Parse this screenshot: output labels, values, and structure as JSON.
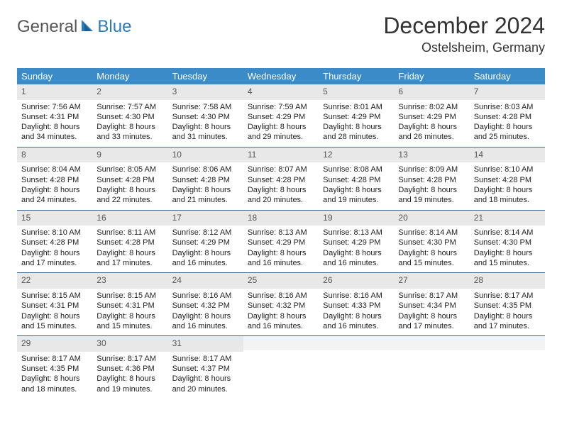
{
  "logo": {
    "word1": "General",
    "word2": "Blue"
  },
  "title": "December 2024",
  "location": "Ostelsheim, Germany",
  "colors": {
    "header_bg": "#3b8bc9",
    "header_text": "#ffffff",
    "daynum_bg": "#e8e8e8",
    "daynum_text": "#555555",
    "cell_text": "#222222",
    "week_border": "#3b6f9a",
    "logo_gray": "#575757",
    "logo_blue": "#2b7bbf"
  },
  "typography": {
    "title_fontsize": 32,
    "location_fontsize": 18,
    "dayheader_fontsize": 13,
    "daynum_fontsize": 12,
    "body_fontsize": 11
  },
  "dayNames": [
    "Sunday",
    "Monday",
    "Tuesday",
    "Wednesday",
    "Thursday",
    "Friday",
    "Saturday"
  ],
  "weeks": [
    [
      {
        "num": "1",
        "sunrise": "Sunrise: 7:56 AM",
        "sunset": "Sunset: 4:31 PM",
        "dl1": "Daylight: 8 hours",
        "dl2": "and 34 minutes."
      },
      {
        "num": "2",
        "sunrise": "Sunrise: 7:57 AM",
        "sunset": "Sunset: 4:30 PM",
        "dl1": "Daylight: 8 hours",
        "dl2": "and 33 minutes."
      },
      {
        "num": "3",
        "sunrise": "Sunrise: 7:58 AM",
        "sunset": "Sunset: 4:30 PM",
        "dl1": "Daylight: 8 hours",
        "dl2": "and 31 minutes."
      },
      {
        "num": "4",
        "sunrise": "Sunrise: 7:59 AM",
        "sunset": "Sunset: 4:29 PM",
        "dl1": "Daylight: 8 hours",
        "dl2": "and 29 minutes."
      },
      {
        "num": "5",
        "sunrise": "Sunrise: 8:01 AM",
        "sunset": "Sunset: 4:29 PM",
        "dl1": "Daylight: 8 hours",
        "dl2": "and 28 minutes."
      },
      {
        "num": "6",
        "sunrise": "Sunrise: 8:02 AM",
        "sunset": "Sunset: 4:29 PM",
        "dl1": "Daylight: 8 hours",
        "dl2": "and 26 minutes."
      },
      {
        "num": "7",
        "sunrise": "Sunrise: 8:03 AM",
        "sunset": "Sunset: 4:28 PM",
        "dl1": "Daylight: 8 hours",
        "dl2": "and 25 minutes."
      }
    ],
    [
      {
        "num": "8",
        "sunrise": "Sunrise: 8:04 AM",
        "sunset": "Sunset: 4:28 PM",
        "dl1": "Daylight: 8 hours",
        "dl2": "and 24 minutes."
      },
      {
        "num": "9",
        "sunrise": "Sunrise: 8:05 AM",
        "sunset": "Sunset: 4:28 PM",
        "dl1": "Daylight: 8 hours",
        "dl2": "and 22 minutes."
      },
      {
        "num": "10",
        "sunrise": "Sunrise: 8:06 AM",
        "sunset": "Sunset: 4:28 PM",
        "dl1": "Daylight: 8 hours",
        "dl2": "and 21 minutes."
      },
      {
        "num": "11",
        "sunrise": "Sunrise: 8:07 AM",
        "sunset": "Sunset: 4:28 PM",
        "dl1": "Daylight: 8 hours",
        "dl2": "and 20 minutes."
      },
      {
        "num": "12",
        "sunrise": "Sunrise: 8:08 AM",
        "sunset": "Sunset: 4:28 PM",
        "dl1": "Daylight: 8 hours",
        "dl2": "and 19 minutes."
      },
      {
        "num": "13",
        "sunrise": "Sunrise: 8:09 AM",
        "sunset": "Sunset: 4:28 PM",
        "dl1": "Daylight: 8 hours",
        "dl2": "and 19 minutes."
      },
      {
        "num": "14",
        "sunrise": "Sunrise: 8:10 AM",
        "sunset": "Sunset: 4:28 PM",
        "dl1": "Daylight: 8 hours",
        "dl2": "and 18 minutes."
      }
    ],
    [
      {
        "num": "15",
        "sunrise": "Sunrise: 8:10 AM",
        "sunset": "Sunset: 4:28 PM",
        "dl1": "Daylight: 8 hours",
        "dl2": "and 17 minutes."
      },
      {
        "num": "16",
        "sunrise": "Sunrise: 8:11 AM",
        "sunset": "Sunset: 4:28 PM",
        "dl1": "Daylight: 8 hours",
        "dl2": "and 17 minutes."
      },
      {
        "num": "17",
        "sunrise": "Sunrise: 8:12 AM",
        "sunset": "Sunset: 4:29 PM",
        "dl1": "Daylight: 8 hours",
        "dl2": "and 16 minutes."
      },
      {
        "num": "18",
        "sunrise": "Sunrise: 8:13 AM",
        "sunset": "Sunset: 4:29 PM",
        "dl1": "Daylight: 8 hours",
        "dl2": "and 16 minutes."
      },
      {
        "num": "19",
        "sunrise": "Sunrise: 8:13 AM",
        "sunset": "Sunset: 4:29 PM",
        "dl1": "Daylight: 8 hours",
        "dl2": "and 16 minutes."
      },
      {
        "num": "20",
        "sunrise": "Sunrise: 8:14 AM",
        "sunset": "Sunset: 4:30 PM",
        "dl1": "Daylight: 8 hours",
        "dl2": "and 15 minutes."
      },
      {
        "num": "21",
        "sunrise": "Sunrise: 8:14 AM",
        "sunset": "Sunset: 4:30 PM",
        "dl1": "Daylight: 8 hours",
        "dl2": "and 15 minutes."
      }
    ],
    [
      {
        "num": "22",
        "sunrise": "Sunrise: 8:15 AM",
        "sunset": "Sunset: 4:31 PM",
        "dl1": "Daylight: 8 hours",
        "dl2": "and 15 minutes."
      },
      {
        "num": "23",
        "sunrise": "Sunrise: 8:15 AM",
        "sunset": "Sunset: 4:31 PM",
        "dl1": "Daylight: 8 hours",
        "dl2": "and 15 minutes."
      },
      {
        "num": "24",
        "sunrise": "Sunrise: 8:16 AM",
        "sunset": "Sunset: 4:32 PM",
        "dl1": "Daylight: 8 hours",
        "dl2": "and 16 minutes."
      },
      {
        "num": "25",
        "sunrise": "Sunrise: 8:16 AM",
        "sunset": "Sunset: 4:32 PM",
        "dl1": "Daylight: 8 hours",
        "dl2": "and 16 minutes."
      },
      {
        "num": "26",
        "sunrise": "Sunrise: 8:16 AM",
        "sunset": "Sunset: 4:33 PM",
        "dl1": "Daylight: 8 hours",
        "dl2": "and 16 minutes."
      },
      {
        "num": "27",
        "sunrise": "Sunrise: 8:17 AM",
        "sunset": "Sunset: 4:34 PM",
        "dl1": "Daylight: 8 hours",
        "dl2": "and 17 minutes."
      },
      {
        "num": "28",
        "sunrise": "Sunrise: 8:17 AM",
        "sunset": "Sunset: 4:35 PM",
        "dl1": "Daylight: 8 hours",
        "dl2": "and 17 minutes."
      }
    ],
    [
      {
        "num": "29",
        "sunrise": "Sunrise: 8:17 AM",
        "sunset": "Sunset: 4:35 PM",
        "dl1": "Daylight: 8 hours",
        "dl2": "and 18 minutes."
      },
      {
        "num": "30",
        "sunrise": "Sunrise: 8:17 AM",
        "sunset": "Sunset: 4:36 PM",
        "dl1": "Daylight: 8 hours",
        "dl2": "and 19 minutes."
      },
      {
        "num": "31",
        "sunrise": "Sunrise: 8:17 AM",
        "sunset": "Sunset: 4:37 PM",
        "dl1": "Daylight: 8 hours",
        "dl2": "and 20 minutes."
      },
      null,
      null,
      null,
      null
    ]
  ]
}
